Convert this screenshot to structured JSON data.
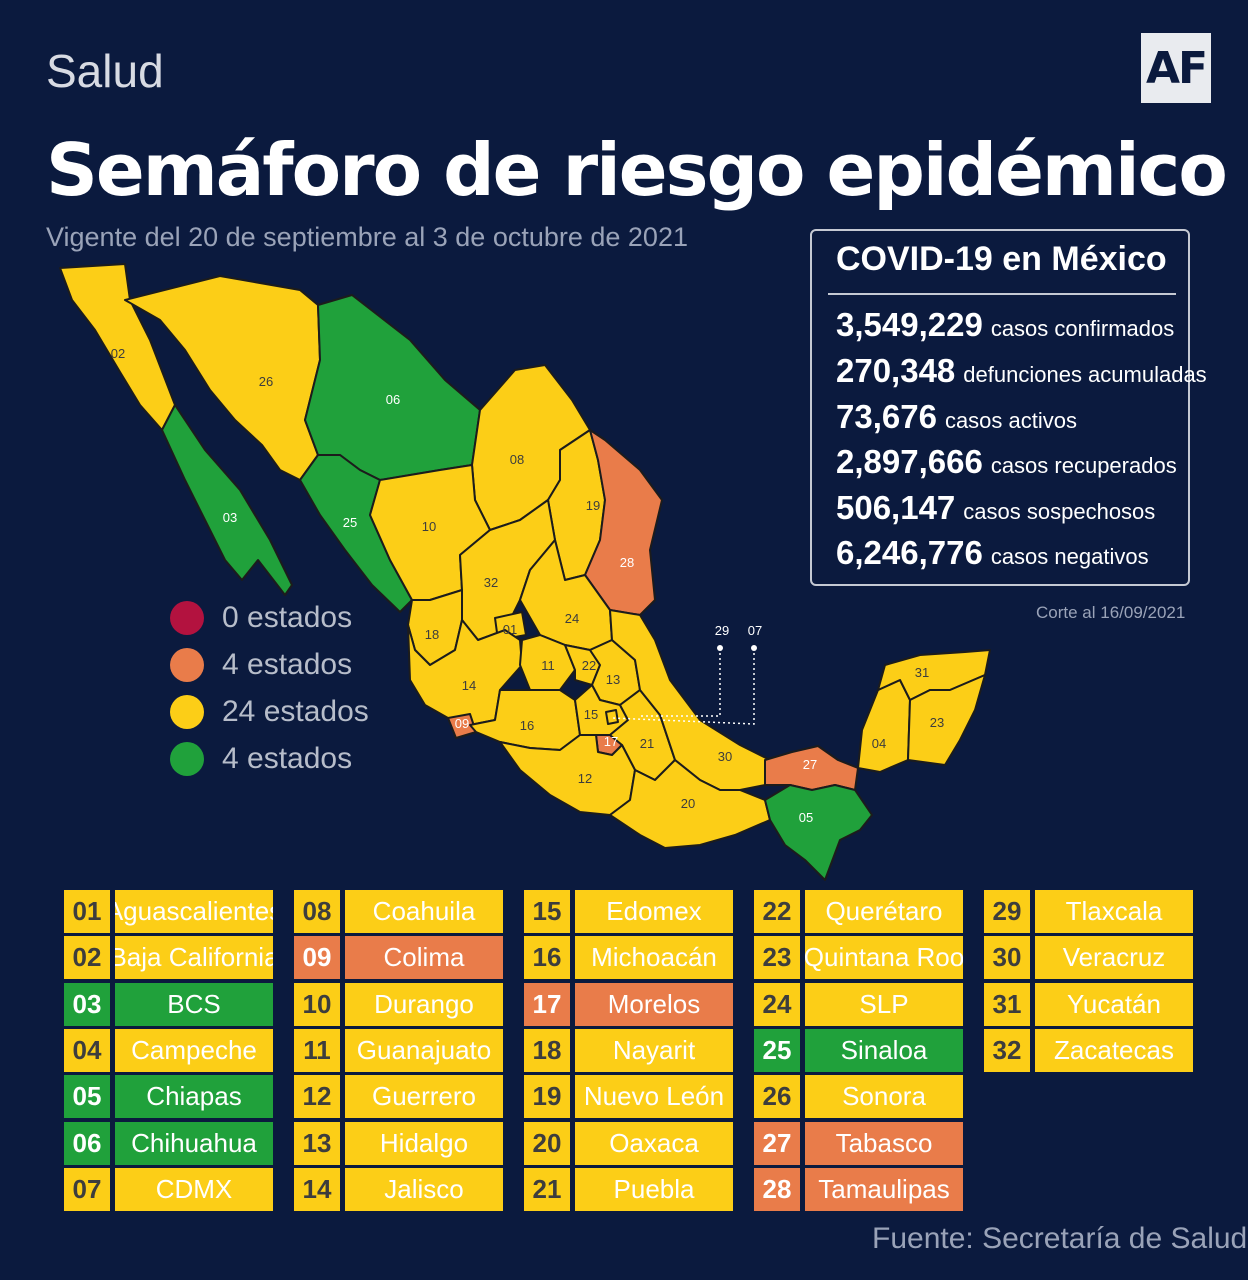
{
  "header": {
    "section": "Salud",
    "logo": "AF",
    "title": "Semáforo de riesgo epidémico",
    "subtitle": "Vigente del 20 de septiembre al 3 de octubre de 2021"
  },
  "colors": {
    "background": "#0b1a3e",
    "red": "#b3123f",
    "orange": "#e97c4a",
    "yellow": "#fcce17",
    "green": "#20a13b"
  },
  "stats": {
    "title": "COVID-19 en México",
    "items": [
      {
        "value": "3,549,229",
        "label": "casos confirmados"
      },
      {
        "value": "270,348",
        "label": "defunciones acumuladas"
      },
      {
        "value": "73,676",
        "label": "casos activos"
      },
      {
        "value": "2,897,666",
        "label": "casos recuperados"
      },
      {
        "value": "506,147",
        "label": "casos sospechosos"
      },
      {
        "value": "6,246,776",
        "label": "casos negativos"
      }
    ],
    "cutoff": "Corte al 16/09/2021"
  },
  "legend": [
    {
      "color": "red",
      "label": "0 estados"
    },
    {
      "color": "orange",
      "label": "4 estados"
    },
    {
      "color": "yellow",
      "label": "24 estados"
    },
    {
      "color": "green",
      "label": "4 estados"
    }
  ],
  "states": [
    {
      "code": "01",
      "name": "Aguascalientes",
      "color": "yellow"
    },
    {
      "code": "02",
      "name": "Baja California",
      "color": "yellow"
    },
    {
      "code": "03",
      "name": "BCS",
      "color": "green"
    },
    {
      "code": "04",
      "name": "Campeche",
      "color": "yellow"
    },
    {
      "code": "05",
      "name": "Chiapas",
      "color": "green"
    },
    {
      "code": "06",
      "name": "Chihuahua",
      "color": "green"
    },
    {
      "code": "07",
      "name": "CDMX",
      "color": "yellow"
    },
    {
      "code": "08",
      "name": "Coahuila",
      "color": "yellow"
    },
    {
      "code": "09",
      "name": "Colima",
      "color": "orange"
    },
    {
      "code": "10",
      "name": "Durango",
      "color": "yellow"
    },
    {
      "code": "11",
      "name": "Guanajuato",
      "color": "yellow"
    },
    {
      "code": "12",
      "name": "Guerrero",
      "color": "yellow"
    },
    {
      "code": "13",
      "name": "Hidalgo",
      "color": "yellow"
    },
    {
      "code": "14",
      "name": "Jalisco",
      "color": "yellow"
    },
    {
      "code": "15",
      "name": "Edomex",
      "color": "yellow"
    },
    {
      "code": "16",
      "name": "Michoacán",
      "color": "yellow"
    },
    {
      "code": "17",
      "name": "Morelos",
      "color": "orange"
    },
    {
      "code": "18",
      "name": "Nayarit",
      "color": "yellow"
    },
    {
      "code": "19",
      "name": "Nuevo León",
      "color": "yellow"
    },
    {
      "code": "20",
      "name": "Oaxaca",
      "color": "yellow"
    },
    {
      "code": "21",
      "name": "Puebla",
      "color": "yellow"
    },
    {
      "code": "22",
      "name": "Querétaro",
      "color": "yellow"
    },
    {
      "code": "23",
      "name": "Quintana Roo",
      "color": "yellow"
    },
    {
      "code": "24",
      "name": "SLP",
      "color": "yellow"
    },
    {
      "code": "25",
      "name": "Sinaloa",
      "color": "green"
    },
    {
      "code": "26",
      "name": "Sonora",
      "color": "yellow"
    },
    {
      "code": "27",
      "name": "Tabasco",
      "color": "orange"
    },
    {
      "code": "28",
      "name": "Tamaulipas",
      "color": "orange"
    },
    {
      "code": "29",
      "name": "Tlaxcala",
      "color": "yellow"
    },
    {
      "code": "30",
      "name": "Veracruz",
      "color": "yellow"
    },
    {
      "code": "31",
      "name": "Yucatán",
      "color": "yellow"
    },
    {
      "code": "32",
      "name": "Zacatecas",
      "color": "yellow"
    }
  ],
  "source": "Fuente: Secretaría de Salud"
}
